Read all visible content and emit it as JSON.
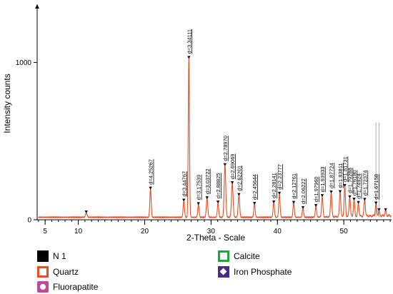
{
  "chart_data": {
    "type": "line",
    "xlabel": "2-Theta - Scale",
    "ylabel": "Intensity counts",
    "xlim": [
      3.8,
      57.2
    ],
    "ylim": [
      0,
      1370
    ],
    "x_ticks": [
      5,
      10,
      20,
      30,
      40,
      50
    ],
    "x_minor_step": 1,
    "y_ticks": [
      0,
      1000
    ],
    "y_tick_labels": [
      "0",
      "1000"
    ],
    "baseline": 16,
    "noise_amplitude": 3,
    "series": [
      {
        "name": "N 1",
        "color": "#f04a1e"
      }
    ],
    "peaks": [
      {
        "x": 11.2,
        "height": 28,
        "width": 0.12,
        "label": ""
      },
      {
        "x": 20.88,
        "height": 180,
        "width": 0.1,
        "label": "d=4.25267"
      },
      {
        "x": 25.9,
        "height": 105,
        "width": 0.1,
        "label": "d=3.44767"
      },
      {
        "x": 26.66,
        "height": 1010,
        "width": 0.09,
        "label": "d=3.34111"
      },
      {
        "x": 28.1,
        "height": 82,
        "width": 0.1,
        "label": "d=3.17539"
      },
      {
        "x": 29.4,
        "height": 120,
        "width": 0.11,
        "label": "d=3.03722"
      },
      {
        "x": 31.05,
        "height": 90,
        "width": 0.1,
        "label": "d=2.88825"
      },
      {
        "x": 32.1,
        "height": 330,
        "width": 0.12,
        "label": "d=2.78970"
      },
      {
        "x": 33.2,
        "height": 215,
        "width": 0.12,
        "label": "d=2.69069"
      },
      {
        "x": 34.2,
        "height": 140,
        "width": 0.11,
        "label": "d=2.62201"
      },
      {
        "x": 36.55,
        "height": 85,
        "width": 0.1,
        "label": "d=2.45644"
      },
      {
        "x": 39.45,
        "height": 95,
        "width": 0.1,
        "label": "d=2.28141"
      },
      {
        "x": 40.3,
        "height": 148,
        "width": 0.1,
        "label": "d=2.23777"
      },
      {
        "x": 42.45,
        "height": 92,
        "width": 0.1,
        "label": "d=2.12761"
      },
      {
        "x": 43.85,
        "height": 58,
        "width": 0.1,
        "label": "d=2.06222"
      },
      {
        "x": 45.8,
        "height": 68,
        "width": 0.1,
        "label": "d=1.97960"
      },
      {
        "x": 46.75,
        "height": 130,
        "width": 0.1,
        "label": "d=1.93933"
      },
      {
        "x": 48.1,
        "height": 155,
        "width": 0.1,
        "label": "d=1.87724"
      },
      {
        "x": 49.45,
        "height": 158,
        "width": 0.1,
        "label": "d=1.83811"
      },
      {
        "x": 50.15,
        "height": 190,
        "width": 0.1,
        "label": "d=1.81731"
      },
      {
        "x": 50.9,
        "height": 125,
        "width": 0.1,
        "label": "d=1.79288"
      },
      {
        "x": 51.55,
        "height": 100,
        "width": 0.1,
        "label": "d=1.76180"
      },
      {
        "x": 52.2,
        "height": 82,
        "width": 0.1,
        "label": "d=1.74924"
      },
      {
        "x": 53.15,
        "height": 105,
        "width": 0.1,
        "label": "d=1.72374"
      },
      {
        "x": 54.85,
        "height": 75,
        "width": 0.1,
        "label": "d=1.67158"
      },
      {
        "x": 55.3,
        "height": 32,
        "width": 0.1,
        "label": ""
      },
      {
        "x": 56.3,
        "height": 28,
        "width": 0.1,
        "label": ""
      }
    ],
    "grey_reference_lines": [
      54.85,
      55.3
    ]
  },
  "legend": {
    "items": [
      {
        "label": "N 1",
        "swatch": "sw-n1"
      },
      {
        "label": "Quartz",
        "swatch": "sw-quartz"
      },
      {
        "label": "Fluorapatite",
        "swatch": "sw-fluor"
      },
      {
        "label": "Calcite",
        "swatch": "sw-calcite"
      },
      {
        "label": "Iron Phosphate",
        "swatch": "sw-iron"
      }
    ]
  },
  "colors": {
    "pattern": "#f04a1e",
    "axis": "#000000",
    "reference_line": "#9a9a9a",
    "marker": "#000000"
  }
}
